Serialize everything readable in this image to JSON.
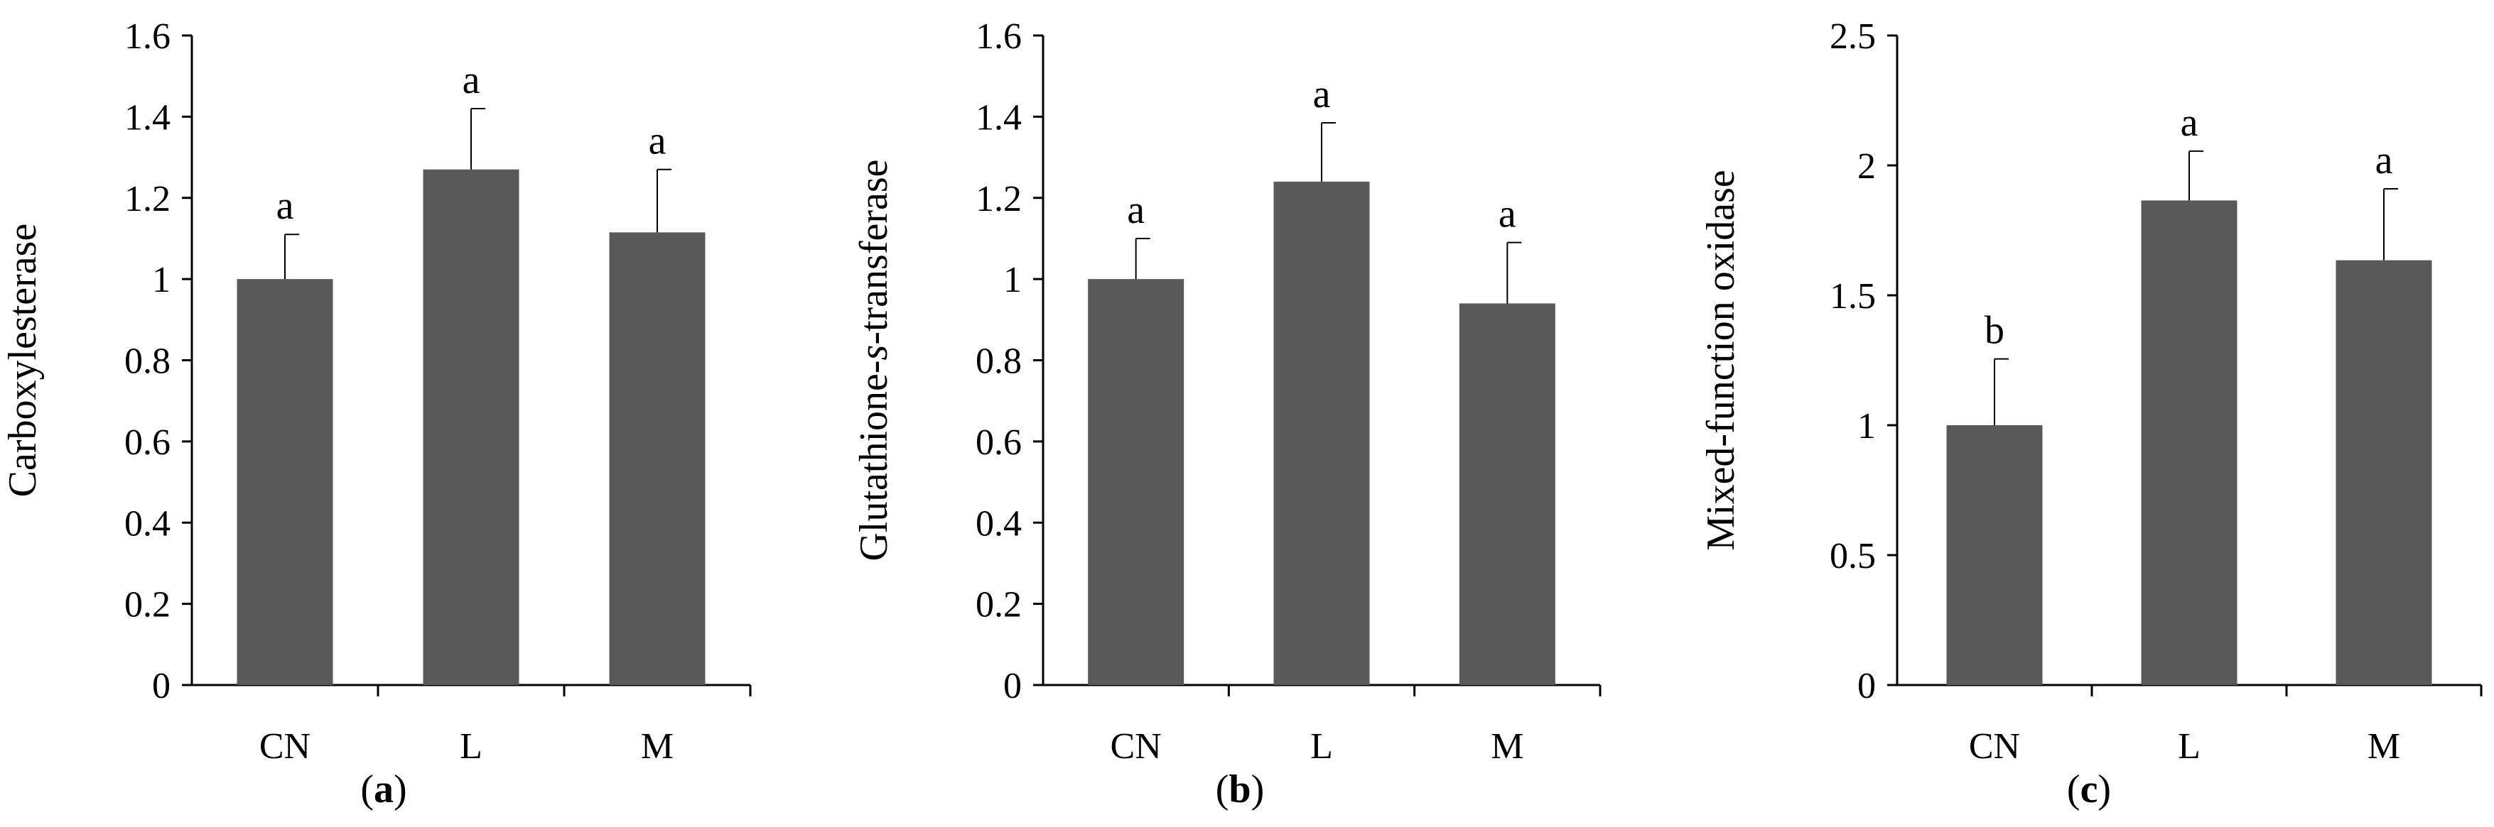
{
  "chart_data": [
    {
      "type": "bar",
      "panel_label": "a",
      "ylabel": "Carboxylesterase",
      "categories": [
        "CN",
        "L",
        "M"
      ],
      "values": [
        1.0,
        1.27,
        1.115
      ],
      "errors": [
        0.11,
        0.15,
        0.155
      ],
      "significance": [
        "a",
        "a",
        "a"
      ],
      "ylim": [
        0,
        1.6
      ],
      "yticks": [
        0,
        0.2,
        0.4,
        0.6,
        0.8,
        1.0,
        1.2,
        1.4,
        1.6
      ],
      "ytick_labels": [
        "0",
        "0.2",
        "0.4",
        "0.6",
        "0.8",
        "1",
        "1.2",
        "1.4",
        "1.6"
      ],
      "bar_color": "#595959",
      "grid": false
    },
    {
      "type": "bar",
      "panel_label": "b",
      "ylabel_prefix": "Glutathione-",
      "ylabel_italic": "s",
      "ylabel_suffix": "-transferase",
      "categories": [
        "CN",
        "L",
        "M"
      ],
      "values": [
        1.0,
        1.24,
        0.94
      ],
      "errors": [
        0.1,
        0.145,
        0.15
      ],
      "significance": [
        "a",
        "a",
        "a"
      ],
      "ylim": [
        0,
        1.6
      ],
      "yticks": [
        0,
        0.2,
        0.4,
        0.6,
        0.8,
        1.0,
        1.2,
        1.4,
        1.6
      ],
      "ytick_labels": [
        "0",
        "0.2",
        "0.4",
        "0.6",
        "0.8",
        "1",
        "1.2",
        "1.4",
        "1.6"
      ],
      "bar_color": "#595959",
      "grid": false
    },
    {
      "type": "bar",
      "panel_label": "c",
      "ylabel": "Mixed-function oxidase",
      "categories": [
        "CN",
        "L",
        "M"
      ],
      "values": [
        1.0,
        1.865,
        1.635
      ],
      "errors": [
        0.255,
        0.19,
        0.275
      ],
      "significance": [
        "b",
        "a",
        "a"
      ],
      "ylim": [
        0,
        2.5
      ],
      "yticks": [
        0,
        0.5,
        1.0,
        1.5,
        2.0,
        2.5
      ],
      "ytick_labels": [
        "0",
        "0.5",
        "1",
        "1.5",
        "2",
        "2.5"
      ],
      "bar_color": "#595959",
      "grid": false
    }
  ]
}
